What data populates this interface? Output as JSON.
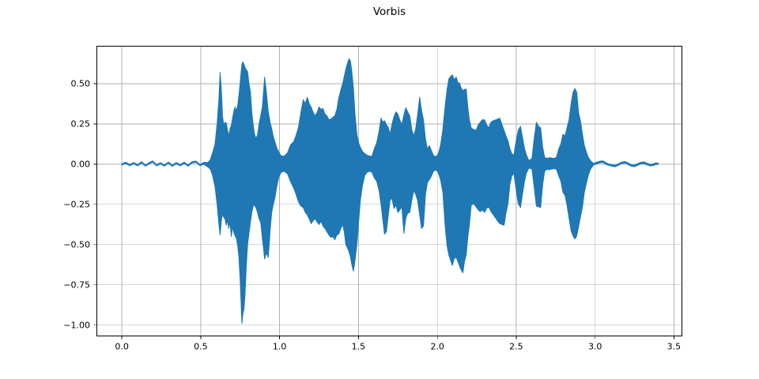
{
  "chart_data": {
    "type": "line",
    "subtype": "audio_waveform_envelope",
    "title": "Vorbis",
    "xlabel": "",
    "ylabel": "",
    "xlim": [
      -0.161,
      3.553
    ],
    "ylim": [
      -1.07,
      0.735
    ],
    "grid": true,
    "legend": false,
    "line_color": "#1f77b4",
    "grid_color": "#b0b0b0",
    "spine_color": "#000000",
    "text_color": "#000000",
    "xticks": [
      0.0,
      0.5,
      1.0,
      1.5,
      2.0,
      2.5,
      3.0,
      3.5
    ],
    "xtick_labels": [
      "0.0",
      "0.5",
      "1.0",
      "1.5",
      "2.0",
      "2.5",
      "3.0",
      "3.5"
    ],
    "yticks": [
      0.5,
      0.25,
      0.0,
      -0.25,
      -0.5,
      -0.75,
      -1.0
    ],
    "ytick_labels": [
      "0.50",
      "0.25",
      "0.00",
      "−0.25",
      "−0.50",
      "−0.75",
      "−1.00"
    ],
    "envelope_points_format": [
      "time_s",
      "min_amplitude",
      "max_amplitude"
    ],
    "envelope": [
      [
        0.0,
        -0.006,
        0.002
      ],
      [
        0.025,
        0.004,
        0.012
      ],
      [
        0.05,
        -0.01,
        -0.002
      ],
      [
        0.075,
        0.002,
        0.01
      ],
      [
        0.1,
        -0.011,
        -0.003
      ],
      [
        0.125,
        0.007,
        0.015
      ],
      [
        0.15,
        -0.013,
        -0.005
      ],
      [
        0.175,
        0.003,
        0.011
      ],
      [
        0.195,
        0.012,
        0.02
      ],
      [
        0.22,
        -0.011,
        -0.003
      ],
      [
        0.245,
        0.001,
        0.009
      ],
      [
        0.27,
        -0.013,
        -0.005
      ],
      [
        0.295,
        0.005,
        0.013
      ],
      [
        0.32,
        -0.014,
        -0.006
      ],
      [
        0.345,
        0.002,
        0.01
      ],
      [
        0.37,
        -0.011,
        -0.003
      ],
      [
        0.395,
        0.004,
        0.012
      ],
      [
        0.42,
        -0.013,
        -0.005
      ],
      [
        0.445,
        0.007,
        0.015
      ],
      [
        0.47,
        0.011,
        0.019
      ],
      [
        0.495,
        -0.01,
        -0.002
      ],
      [
        0.52,
        -0.001,
        0.011
      ],
      [
        0.545,
        -0.018,
        0.01
      ],
      [
        0.56,
        -0.03,
        0.025
      ],
      [
        0.575,
        -0.07,
        0.07
      ],
      [
        0.59,
        -0.135,
        0.12
      ],
      [
        0.604,
        -0.25,
        0.25
      ],
      [
        0.615,
        -0.37,
        0.4
      ],
      [
        0.623,
        -0.44,
        0.57
      ],
      [
        0.631,
        -0.35,
        0.46
      ],
      [
        0.638,
        -0.31,
        0.3
      ],
      [
        0.646,
        -0.33,
        0.24
      ],
      [
        0.654,
        -0.34,
        0.26
      ],
      [
        0.662,
        -0.38,
        0.255
      ],
      [
        0.67,
        -0.35,
        0.21
      ],
      [
        0.678,
        -0.4,
        0.175
      ],
      [
        0.686,
        -0.36,
        0.22
      ],
      [
        0.694,
        -0.45,
        0.24
      ],
      [
        0.702,
        -0.39,
        0.285
      ],
      [
        0.71,
        -0.425,
        0.33
      ],
      [
        0.718,
        -0.445,
        0.355
      ],
      [
        0.726,
        -0.46,
        0.33
      ],
      [
        0.734,
        -0.505,
        0.36
      ],
      [
        0.742,
        -0.575,
        0.425
      ],
      [
        0.75,
        -0.72,
        0.505
      ],
      [
        0.756,
        -0.86,
        0.57
      ],
      [
        0.761,
        -0.99,
        0.62
      ],
      [
        0.767,
        -0.93,
        0.635
      ],
      [
        0.774,
        -0.9,
        0.62
      ],
      [
        0.781,
        -0.81,
        0.6
      ],
      [
        0.789,
        -0.63,
        0.585
      ],
      [
        0.797,
        -0.5,
        0.575
      ],
      [
        0.806,
        -0.43,
        0.5
      ],
      [
        0.815,
        -0.36,
        0.45
      ],
      [
        0.824,
        -0.3,
        0.32
      ],
      [
        0.832,
        -0.26,
        0.25
      ],
      [
        0.84,
        -0.255,
        0.19
      ],
      [
        0.85,
        -0.27,
        0.16
      ],
      [
        0.86,
        -0.3,
        0.18
      ],
      [
        0.87,
        -0.34,
        0.25
      ],
      [
        0.88,
        -0.36,
        0.3
      ],
      [
        0.891,
        -0.465,
        0.355
      ],
      [
        0.898,
        -0.52,
        0.45
      ],
      [
        0.905,
        -0.59,
        0.54
      ],
      [
        0.916,
        -0.55,
        0.45
      ],
      [
        0.928,
        -0.58,
        0.325
      ],
      [
        0.941,
        -0.4,
        0.255
      ],
      [
        0.95,
        -0.3,
        0.22
      ],
      [
        0.96,
        -0.25,
        0.17
      ],
      [
        0.97,
        -0.21,
        0.14
      ],
      [
        0.982,
        -0.14,
        0.1
      ],
      [
        0.995,
        -0.08,
        0.075
      ],
      [
        1.01,
        -0.05,
        0.05
      ],
      [
        1.03,
        -0.045,
        0.05
      ],
      [
        1.05,
        -0.06,
        0.07
      ],
      [
        1.07,
        -0.11,
        0.12
      ],
      [
        1.09,
        -0.15,
        0.14
      ],
      [
        1.105,
        -0.19,
        0.18
      ],
      [
        1.12,
        -0.235,
        0.23
      ],
      [
        1.135,
        -0.26,
        0.32
      ],
      [
        1.15,
        -0.27,
        0.4
      ],
      [
        1.163,
        -0.3,
        0.375
      ],
      [
        1.175,
        -0.315,
        0.415
      ],
      [
        1.19,
        -0.345,
        0.37
      ],
      [
        1.2,
        -0.37,
        0.355
      ],
      [
        1.213,
        -0.35,
        0.32
      ],
      [
        1.225,
        -0.34,
        0.3
      ],
      [
        1.238,
        -0.36,
        0.32
      ],
      [
        1.25,
        -0.375,
        0.355
      ],
      [
        1.263,
        -0.355,
        0.34
      ],
      [
        1.275,
        -0.385,
        0.345
      ],
      [
        1.288,
        -0.4,
        0.31
      ],
      [
        1.3,
        -0.42,
        0.3
      ],
      [
        1.313,
        -0.44,
        0.275
      ],
      [
        1.325,
        -0.455,
        0.28
      ],
      [
        1.338,
        -0.45,
        0.29
      ],
      [
        1.35,
        -0.47,
        0.3
      ],
      [
        1.363,
        -0.44,
        0.34
      ],
      [
        1.375,
        -0.435,
        0.41
      ],
      [
        1.388,
        -0.4,
        0.46
      ],
      [
        1.4,
        -0.375,
        0.5
      ],
      [
        1.41,
        -0.42,
        0.545
      ],
      [
        1.42,
        -0.5,
        0.59
      ],
      [
        1.43,
        -0.52,
        0.625
      ],
      [
        1.44,
        -0.545,
        0.655
      ],
      [
        1.449,
        -0.575,
        0.64
      ],
      [
        1.458,
        -0.625,
        0.575
      ],
      [
        1.468,
        -0.665,
        0.47
      ],
      [
        1.478,
        -0.6,
        0.31
      ],
      [
        1.49,
        -0.5,
        0.185
      ],
      [
        1.5,
        -0.37,
        0.135
      ],
      [
        1.512,
        -0.225,
        0.105
      ],
      [
        1.525,
        -0.135,
        0.08
      ],
      [
        1.54,
        -0.07,
        0.065
      ],
      [
        1.555,
        -0.05,
        0.055
      ],
      [
        1.57,
        -0.045,
        0.05
      ],
      [
        1.585,
        -0.05,
        0.048
      ],
      [
        1.6,
        -0.085,
        0.095
      ],
      [
        1.615,
        -0.105,
        0.13
      ],
      [
        1.63,
        -0.16,
        0.2
      ],
      [
        1.643,
        -0.25,
        0.285
      ],
      [
        1.655,
        -0.35,
        0.26
      ],
      [
        1.665,
        -0.435,
        0.27
      ],
      [
        1.677,
        -0.42,
        0.245
      ],
      [
        1.69,
        -0.31,
        0.225
      ],
      [
        1.7,
        -0.225,
        0.185
      ],
      [
        1.712,
        -0.21,
        0.245
      ],
      [
        1.725,
        -0.275,
        0.295
      ],
      [
        1.738,
        -0.255,
        0.325
      ],
      [
        1.75,
        -0.3,
        0.31
      ],
      [
        1.762,
        -0.285,
        0.275
      ],
      [
        1.775,
        -0.265,
        0.245
      ],
      [
        1.788,
        -0.43,
        0.305
      ],
      [
        1.8,
        -0.335,
        0.35
      ],
      [
        1.812,
        -0.305,
        0.325
      ],
      [
        1.825,
        -0.3,
        0.3
      ],
      [
        1.838,
        -0.225,
        0.215
      ],
      [
        1.85,
        -0.165,
        0.175
      ],
      [
        1.862,
        -0.185,
        0.215
      ],
      [
        1.875,
        -0.225,
        0.305
      ],
      [
        1.888,
        -0.315,
        0.415
      ],
      [
        1.9,
        -0.4,
        0.335
      ],
      [
        1.912,
        -0.385,
        0.275
      ],
      [
        1.925,
        -0.185,
        0.155
      ],
      [
        1.937,
        -0.115,
        0.095
      ],
      [
        1.95,
        -0.095,
        0.115
      ],
      [
        1.962,
        -0.075,
        0.085
      ],
      [
        1.975,
        -0.045,
        0.055
      ],
      [
        1.99,
        -0.035,
        0.045
      ],
      [
        2.005,
        -0.05,
        0.06
      ],
      [
        2.02,
        -0.095,
        0.115
      ],
      [
        2.035,
        -0.175,
        0.215
      ],
      [
        2.05,
        -0.39,
        0.365
      ],
      [
        2.062,
        -0.51,
        0.465
      ],
      [
        2.073,
        -0.565,
        0.53
      ],
      [
        2.085,
        -0.6,
        0.545
      ],
      [
        2.095,
        -0.63,
        0.555
      ],
      [
        2.107,
        -0.585,
        0.525
      ],
      [
        2.12,
        -0.58,
        0.54
      ],
      [
        2.13,
        -0.605,
        0.505
      ],
      [
        2.14,
        -0.63,
        0.505
      ],
      [
        2.15,
        -0.655,
        0.475
      ],
      [
        2.162,
        -0.675,
        0.455
      ],
      [
        2.172,
        -0.605,
        0.465
      ],
      [
        2.183,
        -0.565,
        0.465
      ],
      [
        2.193,
        -0.455,
        0.355
      ],
      [
        2.203,
        -0.38,
        0.275
      ],
      [
        2.215,
        -0.255,
        0.225
      ],
      [
        2.23,
        -0.245,
        0.215
      ],
      [
        2.245,
        -0.265,
        0.21
      ],
      [
        2.26,
        -0.285,
        0.245
      ],
      [
        2.272,
        -0.295,
        0.26
      ],
      [
        2.285,
        -0.285,
        0.275
      ],
      [
        2.3,
        -0.3,
        0.275
      ],
      [
        2.312,
        -0.275,
        0.245
      ],
      [
        2.325,
        -0.265,
        0.225
      ],
      [
        2.34,
        -0.295,
        0.26
      ],
      [
        2.355,
        -0.315,
        0.27
      ],
      [
        2.37,
        -0.335,
        0.275
      ],
      [
        2.383,
        -0.355,
        0.28
      ],
      [
        2.396,
        -0.37,
        0.285
      ],
      [
        2.41,
        -0.375,
        0.245
      ],
      [
        2.423,
        -0.38,
        0.21
      ],
      [
        2.435,
        -0.305,
        0.175
      ],
      [
        2.448,
        -0.245,
        0.145
      ],
      [
        2.46,
        -0.125,
        0.095
      ],
      [
        2.472,
        -0.075,
        0.065
      ],
      [
        2.485,
        -0.055,
        0.055
      ],
      [
        2.498,
        -0.15,
        0.135
      ],
      [
        2.513,
        -0.245,
        0.21
      ],
      [
        2.527,
        -0.27,
        0.235
      ],
      [
        2.54,
        -0.185,
        0.165
      ],
      [
        2.553,
        -0.105,
        0.095
      ],
      [
        2.565,
        -0.055,
        0.055
      ],
      [
        2.58,
        -0.025,
        0.022
      ],
      [
        2.6,
        -0.03,
        0.035
      ],
      [
        2.614,
        -0.145,
        0.16
      ],
      [
        2.628,
        -0.26,
        0.26
      ],
      [
        2.642,
        -0.265,
        0.235
      ],
      [
        2.655,
        -0.27,
        0.225
      ],
      [
        2.668,
        -0.125,
        0.105
      ],
      [
        2.68,
        -0.045,
        0.042
      ],
      [
        2.695,
        -0.032,
        0.035
      ],
      [
        2.71,
        -0.035,
        0.04
      ],
      [
        2.725,
        -0.03,
        0.038
      ],
      [
        2.74,
        -0.028,
        0.035
      ],
      [
        2.755,
        -0.032,
        0.042
      ],
      [
        2.77,
        -0.075,
        0.095
      ],
      [
        2.783,
        -0.105,
        0.125
      ],
      [
        2.796,
        -0.175,
        0.185
      ],
      [
        2.81,
        -0.195,
        0.175
      ],
      [
        2.822,
        -0.255,
        0.225
      ],
      [
        2.835,
        -0.335,
        0.275
      ],
      [
        2.848,
        -0.415,
        0.375
      ],
      [
        2.86,
        -0.445,
        0.445
      ],
      [
        2.872,
        -0.465,
        0.47
      ],
      [
        2.884,
        -0.445,
        0.445
      ],
      [
        2.896,
        -0.385,
        0.315
      ],
      [
        2.908,
        -0.325,
        0.265
      ],
      [
        2.92,
        -0.265,
        0.185
      ],
      [
        2.932,
        -0.175,
        0.115
      ],
      [
        2.945,
        -0.118,
        0.075
      ],
      [
        2.958,
        -0.065,
        0.04
      ],
      [
        2.972,
        -0.03,
        0.02
      ],
      [
        2.99,
        -0.006,
        0.004
      ],
      [
        3.01,
        0.002,
        0.012
      ],
      [
        3.03,
        0.008,
        0.018
      ],
      [
        3.05,
        0.01,
        0.02
      ],
      [
        3.07,
        -0.002,
        0.008
      ],
      [
        3.09,
        -0.009,
        0.0
      ],
      [
        3.11,
        -0.014,
        -0.005
      ],
      [
        3.13,
        -0.016,
        -0.007
      ],
      [
        3.15,
        -0.006,
        0.003
      ],
      [
        3.17,
        0.004,
        0.013
      ],
      [
        3.19,
        0.007,
        0.016
      ],
      [
        3.21,
        -0.003,
        0.007
      ],
      [
        3.23,
        -0.013,
        -0.004
      ],
      [
        3.25,
        -0.016,
        -0.006
      ],
      [
        3.27,
        -0.007,
        0.003
      ],
      [
        3.29,
        0.001,
        0.011
      ],
      [
        3.31,
        0.004,
        0.014
      ],
      [
        3.33,
        -0.005,
        0.005
      ],
      [
        3.35,
        -0.011,
        -0.002
      ],
      [
        3.37,
        -0.008,
        0.002
      ],
      [
        3.385,
        -0.002,
        0.008
      ],
      [
        3.4,
        -0.002,
        0.006
      ]
    ]
  }
}
